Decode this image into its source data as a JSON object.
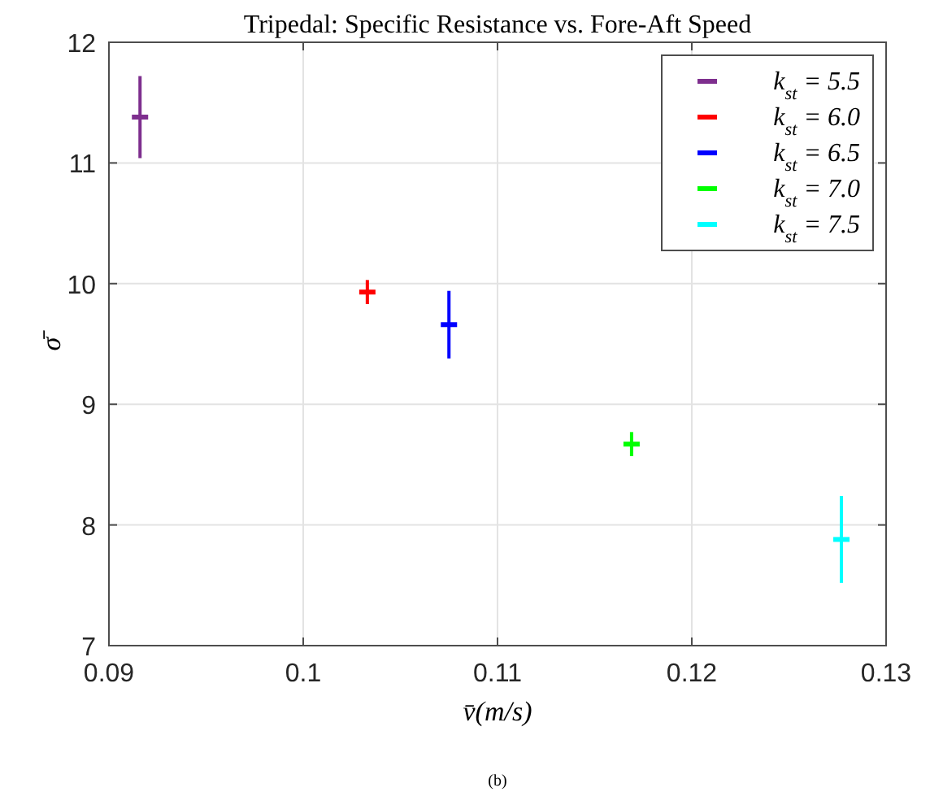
{
  "chart_data": {
    "type": "scatter",
    "title": "Tripedal: Specific Resistance vs. Fore-Aft Speed",
    "xlabel": "v̄(m/s)",
    "ylabel": "σ̄",
    "annotations": [
      "(b)"
    ],
    "xlim": [
      0.09,
      0.13
    ],
    "xticks": [
      0.09,
      0.1,
      0.11,
      0.12,
      0.13
    ],
    "ylim": [
      7,
      12
    ],
    "yticks": [
      7,
      8,
      9,
      10,
      11,
      12
    ],
    "grid": true,
    "legend": "top right",
    "series": [
      {
        "name": "k$_{st}$ = 5.5",
        "color": "#7e2f8e",
        "x": [
          0.0916
        ],
        "values": [
          11.38
        ],
        "errors": [
          0.34
        ]
      },
      {
        "name": "k$_{st}$ = 6.0",
        "color": "#ff0000",
        "x": [
          0.1033
        ],
        "values": [
          9.93
        ],
        "errors": [
          0.1
        ]
      },
      {
        "name": "k$_{st}$ = 6.5",
        "color": "#0000ff",
        "x": [
          0.1075
        ],
        "values": [
          9.66
        ],
        "errors": [
          0.28
        ]
      },
      {
        "name": "k$_{st}$ = 7.0",
        "color": "#00ff00",
        "x": [
          0.1169
        ],
        "values": [
          8.67
        ],
        "errors": [
          0.1
        ]
      },
      {
        "name": "k$_{st}$ = 7.5",
        "color": "#00ffff",
        "x": [
          0.1277
        ],
        "values": [
          7.88
        ],
        "errors": [
          0.36
        ]
      }
    ]
  }
}
